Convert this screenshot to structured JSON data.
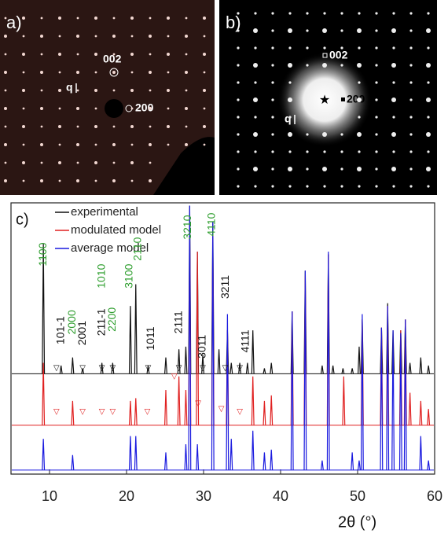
{
  "panels": {
    "a": {
      "label": "a)",
      "spot_labels": [
        "002",
        "200"
      ],
      "q": "q"
    },
    "b": {
      "label": "b)",
      "spot_labels": [
        "002",
        "200"
      ],
      "q": "q"
    },
    "c": {
      "label": "c)"
    }
  },
  "chart_data": {
    "type": "peaks",
    "xlabel": "2θ (°)",
    "xlim": [
      5,
      60
    ],
    "xticks": [
      10,
      20,
      30,
      40,
      50,
      60
    ],
    "ylim": [
      0,
      100
    ],
    "series": [
      {
        "name": "experimental",
        "color": "#111111",
        "baseline": 37,
        "x": [
          9.2,
          11.5,
          13.0,
          14.3,
          16.8,
          18.2,
          20.5,
          21.2,
          22.8,
          25.1,
          26.8,
          27.7,
          28.2,
          29.2,
          29.9,
          31.2,
          32.0,
          33.1,
          33.6,
          34.7,
          35.7,
          36.4,
          37.9,
          38.8,
          41.5,
          43.2,
          45.4,
          46.2,
          46.8,
          48.1,
          49.3,
          50.2,
          50.6,
          53.1,
          53.9,
          54.6,
          55.6,
          56.2,
          56.8,
          58.2,
          59.2
        ],
        "values": [
          85,
          40,
          43,
          39,
          41,
          41,
          62,
          70,
          40,
          43,
          46,
          47,
          99,
          82,
          44,
          93,
          46,
          53,
          41,
          41,
          41,
          53,
          39,
          41,
          60,
          75,
          40,
          81,
          40,
          39,
          39,
          47,
          57,
          54,
          63,
          53,
          53,
          57,
          41,
          43,
          40
        ]
      },
      {
        "name": "modulated model",
        "color": "#e02020",
        "baseline": 18,
        "x": [
          9.2,
          13.0,
          20.5,
          21.2,
          25.1,
          26.8,
          27.7,
          28.2,
          29.2,
          31.2,
          33.1,
          36.4,
          37.9,
          38.8,
          41.5,
          43.2,
          46.2,
          48.2,
          50.6,
          53.1,
          53.9,
          55.6,
          56.2,
          56.8,
          58.2,
          59.2
        ],
        "values": [
          41,
          27,
          27,
          28,
          31,
          36,
          31,
          88,
          82,
          88,
          53,
          36,
          27,
          29,
          60,
          73,
          81,
          36,
          57,
          54,
          62,
          53,
          57,
          30,
          27,
          24
        ]
      },
      {
        "name": "average model",
        "color": "#1a1adf",
        "baseline": 1.5,
        "x": [
          9.2,
          13.0,
          20.5,
          21.2,
          25.1,
          27.7,
          28.2,
          29.2,
          31.2,
          33.1,
          33.6,
          36.4,
          37.9,
          38.8,
          41.5,
          43.2,
          45.4,
          46.2,
          49.3,
          50.2,
          50.6,
          53.1,
          53.9,
          54.6,
          55.6,
          56.2,
          58.2,
          59.2
        ],
        "values": [
          13,
          7,
          14,
          14,
          8,
          11,
          99,
          11,
          93,
          59,
          13,
          16,
          8,
          9,
          60,
          75,
          5,
          82,
          8,
          5,
          59,
          54,
          62,
          53,
          52,
          57,
          14,
          5
        ]
      }
    ],
    "annotations": [
      {
        "text": "1100",
        "x": 9.2,
        "y": 81,
        "color": "#2e9e2e"
      },
      {
        "text": "101-1",
        "x": 11.5,
        "y": 53,
        "color": "#111111"
      },
      {
        "text": "2000",
        "x": 13.0,
        "y": 56,
        "color": "#2e9e2e"
      },
      {
        "text": "2001",
        "x": 14.3,
        "y": 52,
        "color": "#111111"
      },
      {
        "text": "211-1",
        "x": 16.8,
        "y": 56,
        "color": "#111111"
      },
      {
        "text": "1010",
        "x": 16.8,
        "y": 73,
        "color": "#2e9e2e"
      },
      {
        "text": "2200",
        "x": 18.2,
        "y": 57,
        "color": "#2e9e2e"
      },
      {
        "text": "3100",
        "x": 20.4,
        "y": 73,
        "color": "#2e9e2e"
      },
      {
        "text": "2110",
        "x": 21.5,
        "y": 83,
        "color": "#2e9e2e"
      },
      {
        "text": "1011",
        "x": 23.2,
        "y": 50,
        "color": "#111111"
      },
      {
        "text": "2111",
        "x": 26.8,
        "y": 56,
        "color": "#111111"
      },
      {
        "text": "3210",
        "x": 28.0,
        "y": 91,
        "color": "#2e9e2e"
      },
      {
        "text": "4110",
        "x": 31.1,
        "y": 92,
        "color": "#2e9e2e"
      },
      {
        "text": "3011",
        "x": 29.9,
        "y": 47,
        "color": "#111111"
      },
      {
        "text": "3211",
        "x": 32.9,
        "y": 69,
        "color": "#111111"
      },
      {
        "text": "4111",
        "x": 35.5,
        "y": 49,
        "color": "#111111"
      }
    ],
    "markers": [
      {
        "symbol": "▽",
        "color": "#111111",
        "x": [
          10.9,
          14.3,
          16.8,
          18.2,
          22.8,
          26.8,
          29.9,
          32.8,
          34.7
        ],
        "y": [
          39,
          39,
          39,
          39,
          39,
          39,
          39,
          39,
          39
        ]
      },
      {
        "symbol": "▽",
        "color": "#e02020",
        "x": [
          10.9,
          14.3,
          16.8,
          18.2,
          22.7,
          26.2,
          29.3,
          32.3,
          34.7
        ],
        "y": [
          23,
          23,
          23,
          23,
          23,
          36,
          26,
          24,
          23
        ]
      }
    ]
  }
}
